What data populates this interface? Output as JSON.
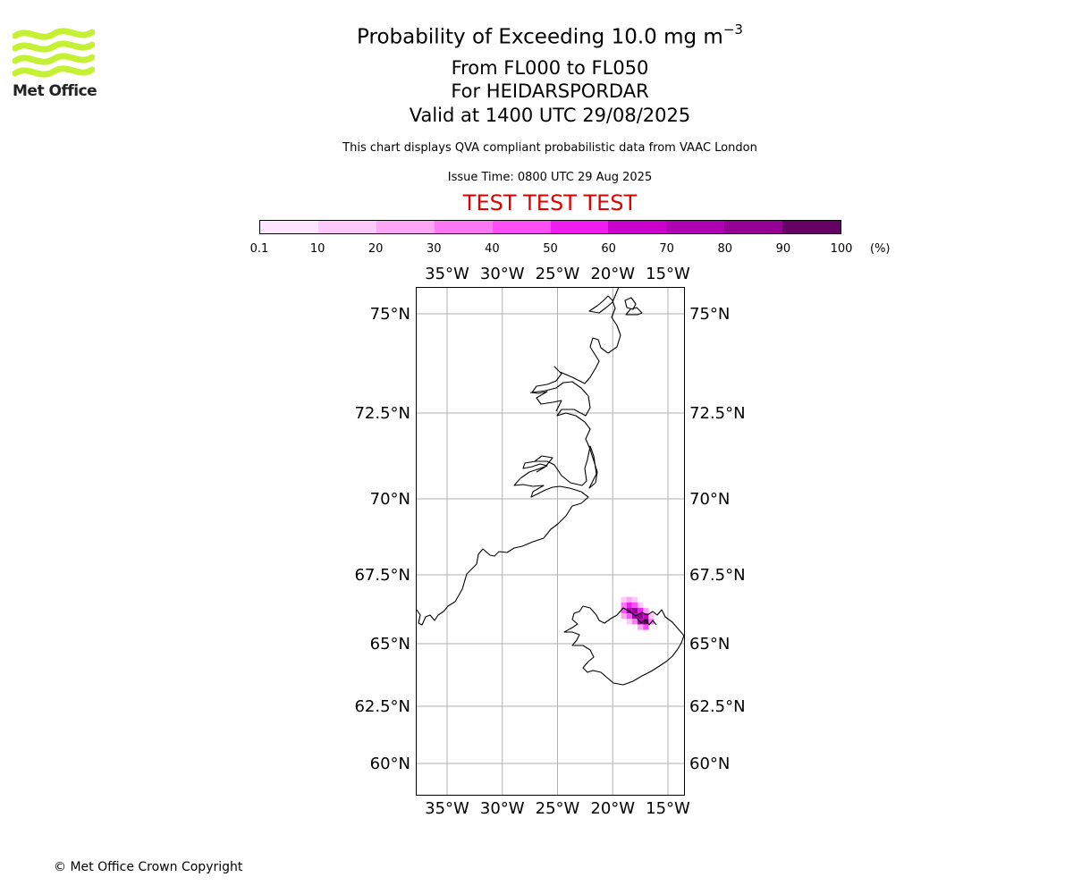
{
  "header": {
    "title_prefix": "Probability of Exceeding 10.0 mg m",
    "title_exponent": "−3",
    "flight_levels": "From FL000 to FL050",
    "location": "For HEIDARSPORDAR",
    "valid_time": "Valid at 1400 UTC 29/08/2025",
    "compliance_note": "This chart displays QVA compliant probabilistic data from VAAC London",
    "issue_time": "Issue Time: 0800 UTC 29 Aug 2025",
    "test_banner": "TEST TEST TEST"
  },
  "logo": {
    "text": "Met Office",
    "icon": "met-office-waves-logo",
    "color": "#c6f034"
  },
  "colorbar": {
    "labels": [
      "0.1",
      "10",
      "20",
      "30",
      "40",
      "50",
      "60",
      "70",
      "80",
      "90",
      "100"
    ],
    "unit": "(%)",
    "colors": [
      "#ffe6ff",
      "#ffc8fa",
      "#ffa5f5",
      "#ff78f3",
      "#ff4ef5",
      "#f01cf0",
      "#cc00cc",
      "#b000b4",
      "#950095",
      "#650064"
    ]
  },
  "map": {
    "lon_ticks": [
      "35°W",
      "30°W",
      "25°W",
      "20°W",
      "15°W"
    ],
    "lat_ticks": [
      "75°N",
      "72.5°N",
      "70°N",
      "67.5°N",
      "65°N",
      "62.5°N",
      "60°N"
    ],
    "lon_values": [
      -35,
      -30,
      -25,
      -20,
      -15
    ],
    "lat_values": [
      75,
      72.5,
      70,
      67.5,
      65,
      62.5,
      60
    ],
    "gridline_color": "#b0b0b0",
    "coastline_color": "#000000",
    "plume_cells": [
      {
        "lon": -19.0,
        "lat": 66.6,
        "p": 15
      },
      {
        "lon": -18.5,
        "lat": 66.6,
        "p": 25
      },
      {
        "lon": -18.0,
        "lat": 66.6,
        "p": 15
      },
      {
        "lon": -19.0,
        "lat": 66.4,
        "p": 35
      },
      {
        "lon": -18.5,
        "lat": 66.4,
        "p": 55
      },
      {
        "lon": -18.0,
        "lat": 66.4,
        "p": 45
      },
      {
        "lon": -17.5,
        "lat": 66.4,
        "p": 15
      },
      {
        "lon": -19.0,
        "lat": 66.2,
        "p": 45
      },
      {
        "lon": -18.5,
        "lat": 66.2,
        "p": 75
      },
      {
        "lon": -18.0,
        "lat": 66.2,
        "p": 85
      },
      {
        "lon": -17.5,
        "lat": 66.2,
        "p": 55
      },
      {
        "lon": -17.0,
        "lat": 66.2,
        "p": 25
      },
      {
        "lon": -19.0,
        "lat": 66.0,
        "p": 25
      },
      {
        "lon": -18.5,
        "lat": 66.0,
        "p": 45
      },
      {
        "lon": -18.0,
        "lat": 66.0,
        "p": 75
      },
      {
        "lon": -17.5,
        "lat": 66.0,
        "p": 85
      },
      {
        "lon": -17.0,
        "lat": 66.0,
        "p": 65
      },
      {
        "lon": -16.5,
        "lat": 66.0,
        "p": 15
      },
      {
        "lon": -18.5,
        "lat": 65.8,
        "p": 15
      },
      {
        "lon": -18.0,
        "lat": 65.8,
        "p": 35
      },
      {
        "lon": -17.5,
        "lat": 65.8,
        "p": 75
      },
      {
        "lon": -17.0,
        "lat": 65.8,
        "p": 95
      },
      {
        "lon": -16.5,
        "lat": 65.8,
        "p": 35
      },
      {
        "lon": -17.5,
        "lat": 65.6,
        "p": 25
      },
      {
        "lon": -17.0,
        "lat": 65.6,
        "p": 45
      }
    ]
  },
  "footer": {
    "copyright": "© Met Office Crown Copyright"
  }
}
